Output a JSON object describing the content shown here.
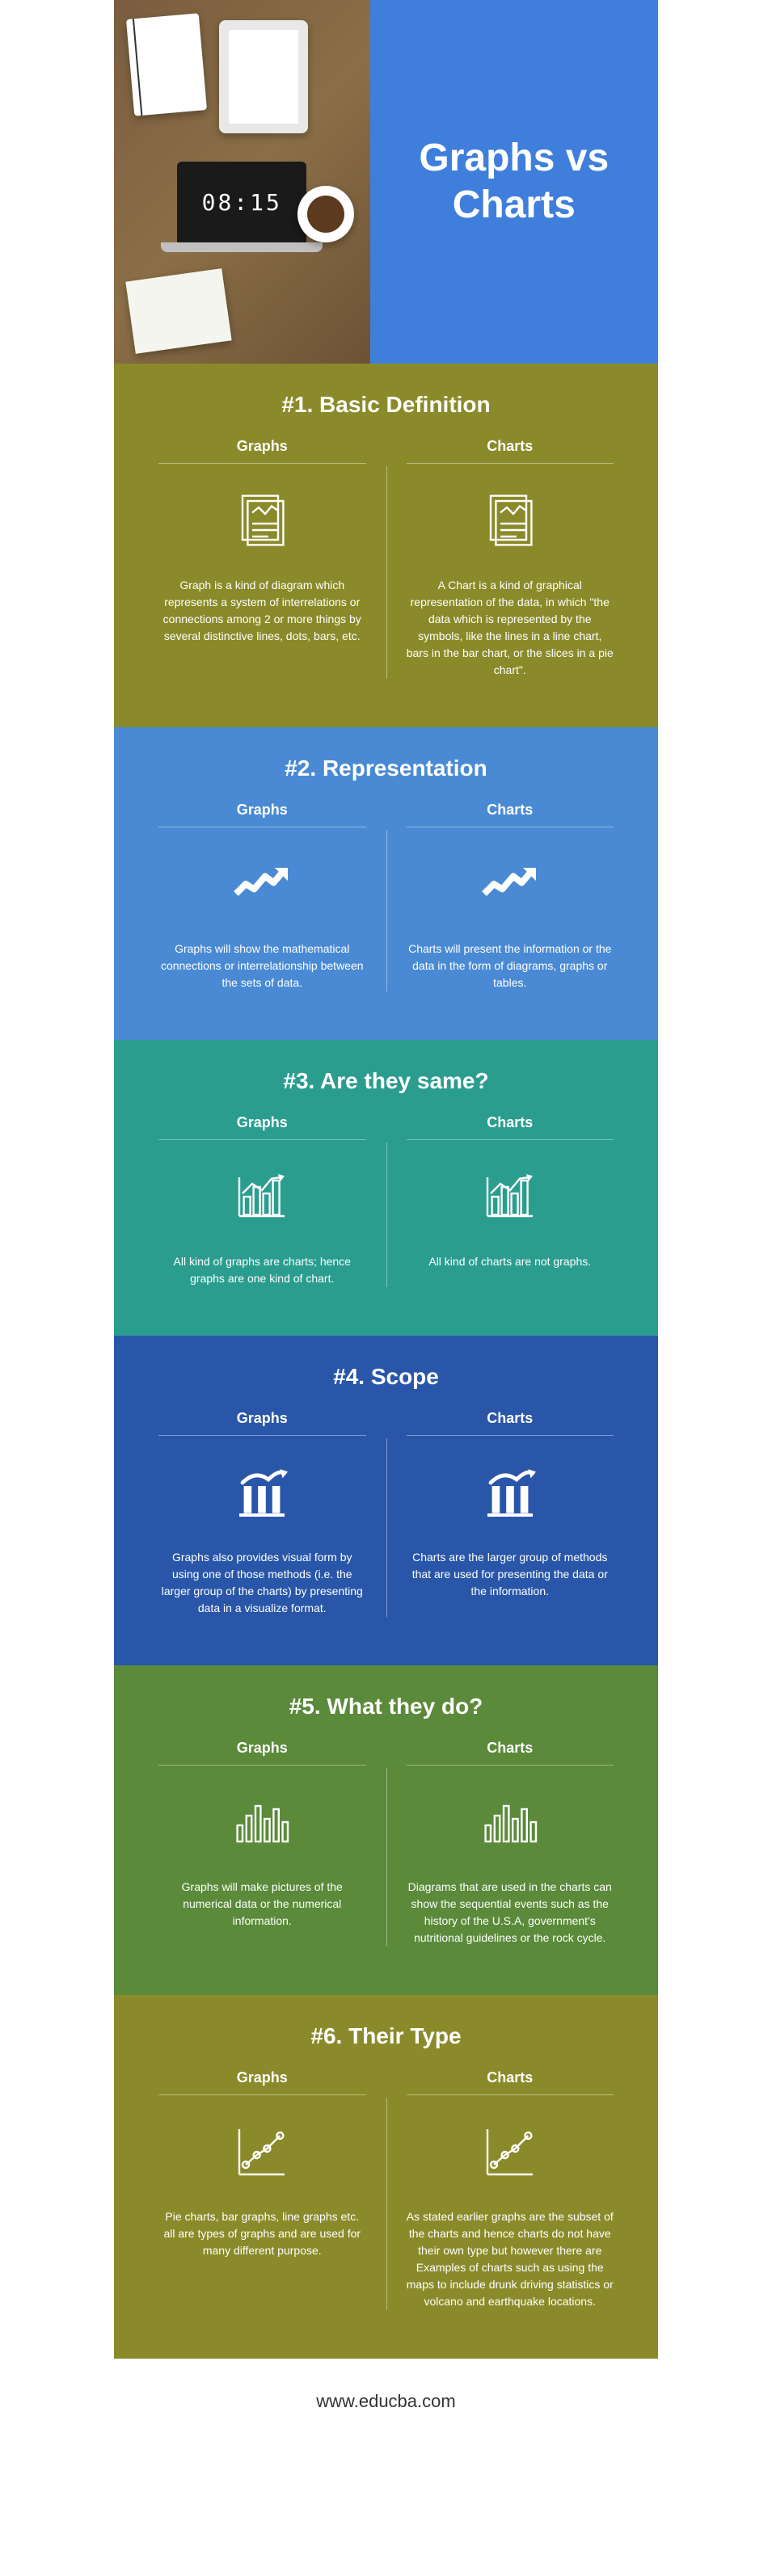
{
  "hero": {
    "title": "Graphs vs Charts",
    "laptop_time": "08:15",
    "bg_color": "#3f7fdb"
  },
  "sections": [
    {
      "title": "#1. Basic Definition",
      "bg_color": "#8a8a2a",
      "icon": "document",
      "left_label": "Graphs",
      "right_label": "Charts",
      "left_text": "Graph is a kind of diagram which represents a system of interrelations or connections among 2 or more things by several distinctive lines, dots, bars, etc.",
      "right_text": "A Chart is a kind of graphical representation of the data, in which \"the data which is represented by the symbols, like the lines in a line chart, bars in the bar chart, or the slices in a pie chart\"."
    },
    {
      "title": "#2. Representation",
      "bg_color": "#4a8ad4",
      "icon": "arrow",
      "left_label": "Graphs",
      "right_label": "Charts",
      "left_text": "Graphs will show the mathematical connections or interrelationship between the sets of data.",
      "right_text": "Charts will present the information or the data in the form of diagrams, graphs or tables."
    },
    {
      "title": "#3. Are they same?",
      "bg_color": "#2a9d8f",
      "icon": "barchart",
      "left_label": "Graphs",
      "right_label": "Charts",
      "left_text": "All kind of graphs are charts; hence graphs are one kind of chart.",
      "right_text": "All kind of charts are not graphs."
    },
    {
      "title": "#4. Scope",
      "bg_color": "#2956a8",
      "icon": "institution",
      "left_label": "Graphs",
      "right_label": "Charts",
      "left_text": "Graphs also provides visual form by using one of those methods (i.e. the larger group of the charts) by presenting data in a visualize format.",
      "right_text": "Charts are the larger group of methods that are used for presenting the data or the information."
    },
    {
      "title": "#5. What they do?",
      "bg_color": "#5a8a3a",
      "icon": "bars",
      "left_label": "Graphs",
      "right_label": "Charts",
      "left_text": "Graphs will make pictures of the numerical data or the numerical information.",
      "right_text": "Diagrams that are used in the charts can show the sequential events such as the history of the U.S.A, government's nutritional guidelines or the rock cycle."
    },
    {
      "title": "#6. Their Type",
      "bg_color": "#8a8a2a",
      "icon": "scatter",
      "left_label": "Graphs",
      "right_label": "Charts",
      "left_text": "Pie charts, bar graphs, line graphs etc. all are types of graphs and are used for many different purpose.",
      "right_text": "As stated earlier graphs are the subset of the charts and hence charts do not have their own type but however there are Examples of charts such as using the maps to include drunk driving statistics or volcano and earthquake locations."
    }
  ],
  "footer": {
    "url": "www.educba.com"
  },
  "icons": {
    "stroke_color": "#ffffff",
    "stroke_width": 3
  }
}
